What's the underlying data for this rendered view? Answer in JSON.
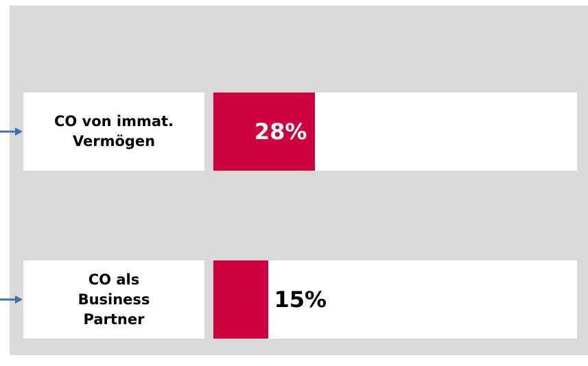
{
  "chart_data": {
    "type": "bar",
    "orientation": "horizontal",
    "categories": [
      "CO von immat.\nVermögen",
      "CO als\nBusiness\nPartner"
    ],
    "values": [
      28,
      15
    ],
    "value_labels": [
      "28%",
      "15%"
    ],
    "color": "#cf0040",
    "xlim": [
      0,
      100
    ]
  }
}
